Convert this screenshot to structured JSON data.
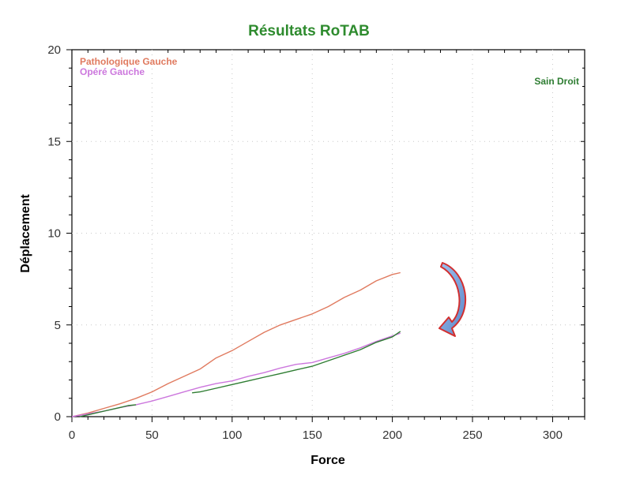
{
  "chart_data": {
    "type": "line",
    "title": "Résultats RoTAB",
    "xlabel": "Force",
    "ylabel": "Déplacement",
    "xlim": [
      0,
      320
    ],
    "ylim": [
      0,
      20
    ],
    "x_ticks": [
      0,
      50,
      100,
      150,
      200,
      250,
      300
    ],
    "y_ticks": [
      0,
      5,
      10,
      15,
      20
    ],
    "grid": true,
    "legend": [
      {
        "label": "Pathologique Gauche",
        "color": "#e07a5f",
        "position": "top-left"
      },
      {
        "label": "Opéré Gauche",
        "color": "#cc77dd",
        "position": "top-left"
      },
      {
        "label": "Sain Droit",
        "color": "#2e7d32",
        "position": "top-right"
      }
    ],
    "series": [
      {
        "name": "Pathologique Gauche",
        "color": "#e07a5f",
        "points": [
          [
            0,
            0
          ],
          [
            10,
            0.2
          ],
          [
            20,
            0.45
          ],
          [
            30,
            0.7
          ],
          [
            40,
            1.0
          ],
          [
            50,
            1.35
          ],
          [
            60,
            1.8
          ],
          [
            70,
            2.2
          ],
          [
            80,
            2.6
          ],
          [
            90,
            3.2
          ],
          [
            100,
            3.6
          ],
          [
            110,
            4.1
          ],
          [
            120,
            4.6
          ],
          [
            130,
            5.0
          ],
          [
            140,
            5.3
          ],
          [
            150,
            5.6
          ],
          [
            160,
            6.0
          ],
          [
            170,
            6.5
          ],
          [
            180,
            6.9
          ],
          [
            190,
            7.4
          ],
          [
            200,
            7.75
          ],
          [
            205,
            7.85
          ]
        ]
      },
      {
        "name": "Opéré Gauche",
        "color": "#cc77dd",
        "points": [
          [
            0,
            0
          ],
          [
            10,
            0.15
          ],
          [
            20,
            0.3
          ],
          [
            30,
            0.5
          ],
          [
            40,
            0.65
          ],
          [
            50,
            0.85
          ],
          [
            60,
            1.1
          ],
          [
            70,
            1.35
          ],
          [
            80,
            1.6
          ],
          [
            90,
            1.8
          ],
          [
            100,
            1.95
          ],
          [
            110,
            2.2
          ],
          [
            120,
            2.4
          ],
          [
            130,
            2.65
          ],
          [
            140,
            2.85
          ],
          [
            150,
            2.95
          ],
          [
            160,
            3.2
          ],
          [
            170,
            3.45
          ],
          [
            180,
            3.75
          ],
          [
            190,
            4.1
          ],
          [
            200,
            4.4
          ],
          [
            205,
            4.55
          ]
        ]
      },
      {
        "name": "Sain Droit",
        "color": "#2e7d32",
        "segments": [
          [
            [
              5,
              0
            ],
            [
              10,
              0.1
            ],
            [
              20,
              0.3
            ],
            [
              30,
              0.5
            ],
            [
              35,
              0.6
            ],
            [
              40,
              0.65
            ]
          ],
          [
            [
              75,
              1.3
            ],
            [
              80,
              1.35
            ],
            [
              90,
              1.55
            ],
            [
              100,
              1.75
            ],
            [
              110,
              1.95
            ],
            [
              120,
              2.15
            ],
            [
              130,
              2.35
            ],
            [
              140,
              2.55
            ],
            [
              150,
              2.75
            ],
            [
              160,
              3.05
            ],
            [
              170,
              3.35
            ],
            [
              180,
              3.65
            ],
            [
              190,
              4.05
            ],
            [
              200,
              4.35
            ],
            [
              205,
              4.65
            ]
          ]
        ]
      }
    ],
    "annotation": {
      "type": "curved-arrow",
      "from": [
        232,
        8.5
      ],
      "to": [
        232,
        4.8
      ],
      "fill": "#7aa0d8",
      "stroke": "#d32f2f"
    }
  }
}
